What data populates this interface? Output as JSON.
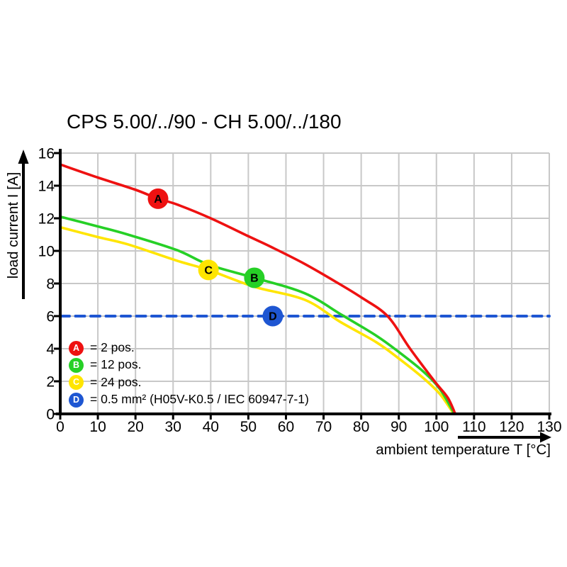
{
  "colors": {
    "red": "#ee1111",
    "green": "#26d026",
    "yellow": "#ffe500",
    "blue": "#1e56d2",
    "grid": "#c8c8c8",
    "axis": "#000000",
    "marker_letter": "#ffffff"
  },
  "chart_data": {
    "type": "line",
    "title": "CPS 5.00/../90 - CH 5.00/../180",
    "xlabel": "ambient temperature T [°C]",
    "ylabel": "load current I [A]",
    "xlim": [
      0,
      130
    ],
    "ylim": [
      0,
      16
    ],
    "x_ticks": [
      0,
      10,
      20,
      30,
      40,
      50,
      60,
      70,
      80,
      90,
      100,
      110,
      120,
      130
    ],
    "y_ticks": [
      0,
      2,
      4,
      6,
      8,
      10,
      12,
      14,
      16
    ],
    "grid": true,
    "legend_position": "inside-lower-left",
    "series": [
      {
        "id": "A",
        "letter": "A",
        "legend_label": "= 2 pos.",
        "color_key": "red",
        "color": "#ee1111",
        "style": "solid",
        "marker_at": [
          26,
          13.2
        ],
        "points": [
          [
            0,
            15.3
          ],
          [
            10,
            14.5
          ],
          [
            20,
            13.75
          ],
          [
            26,
            13.2
          ],
          [
            31,
            12.85
          ],
          [
            40,
            12.0
          ],
          [
            50,
            10.9
          ],
          [
            56,
            10.25
          ],
          [
            65,
            9.2
          ],
          [
            74,
            8.0
          ],
          [
            80,
            7.15
          ],
          [
            87,
            6.0
          ],
          [
            93,
            4.0
          ],
          [
            99.5,
            2.0
          ],
          [
            103,
            1.0
          ],
          [
            105,
            0
          ]
        ]
      },
      {
        "id": "B",
        "letter": "B",
        "legend_label": "= 12 pos.",
        "color_key": "green",
        "color": "#26d026",
        "style": "solid",
        "marker_at": [
          51.6,
          8.35
        ],
        "points": [
          [
            0,
            12.1
          ],
          [
            10,
            11.5
          ],
          [
            18,
            11.0
          ],
          [
            31,
            10.05
          ],
          [
            39.5,
            9.15
          ],
          [
            51.6,
            8.35
          ],
          [
            65,
            7.4
          ],
          [
            75,
            6.05
          ],
          [
            84,
            4.8
          ],
          [
            90,
            3.8
          ],
          [
            96.5,
            2.6
          ],
          [
            101,
            1.5
          ],
          [
            104.8,
            0
          ]
        ]
      },
      {
        "id": "C",
        "letter": "C",
        "legend_label": "= 24 pos.",
        "color_key": "yellow",
        "color": "#ffe500",
        "style": "solid",
        "marker_at": [
          39.4,
          8.83
        ],
        "points": [
          [
            0,
            11.45
          ],
          [
            10,
            10.85
          ],
          [
            18,
            10.4
          ],
          [
            31,
            9.4
          ],
          [
            39.4,
            8.83
          ],
          [
            51.6,
            7.8
          ],
          [
            65,
            7.0
          ],
          [
            74.4,
            5.65
          ],
          [
            84,
            4.4
          ],
          [
            90,
            3.4
          ],
          [
            96.5,
            2.2
          ],
          [
            101,
            1.2
          ],
          [
            104.6,
            0
          ]
        ]
      },
      {
        "id": "D",
        "letter": "D",
        "legend_label": "= 0.5 mm² (H05V-K0.5 / IEC 60947-7-1)",
        "color_key": "blue",
        "color": "#1e56d2",
        "style": "dashed",
        "marker_at": [
          56.5,
          6
        ],
        "points": [
          [
            0,
            6
          ],
          [
            130,
            6
          ]
        ]
      }
    ]
  }
}
